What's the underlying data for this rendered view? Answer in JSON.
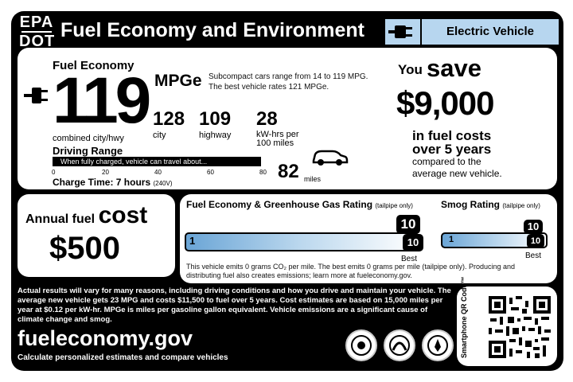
{
  "header": {
    "agency_top": "EPA",
    "agency_bottom": "DOT",
    "title": "Fuel Economy and Environment",
    "vehicle_type": "Electric Vehicle"
  },
  "fuel_economy": {
    "title": "Fuel Economy",
    "mpge": "119",
    "unit": "MPGe",
    "compare_line1": "Subcompact cars range from 14 to 119 MPG.",
    "compare_line2": "The best vehicle rates 121 MPGe.",
    "combined_label": "combined city/hwy",
    "city_value": "128",
    "city_label": "city",
    "highway_value": "109",
    "highway_label": "highway",
    "kwh_value": "28",
    "kwh_label_line1": "kW-hrs per",
    "kwh_label_line2": "100 miles"
  },
  "driving_range": {
    "title": "Driving Range",
    "bar_text": "When fully charged, vehicle can travel about...",
    "ticks": [
      "0",
      "20",
      "40",
      "60",
      "80"
    ],
    "value": "82",
    "unit": "miles",
    "charge_label": "Charge Time: 7 hours",
    "charge_note": "(240V)"
  },
  "savings": {
    "you": "You",
    "save": "save",
    "amount": "$9,000",
    "line1": "in fuel costs",
    "line2": "over 5 years",
    "line3": "compared to the",
    "line4": "average new vehicle."
  },
  "annual": {
    "title_a": "Annual fuel",
    "title_c": "cost",
    "amount": "$500"
  },
  "ghg": {
    "title": "Fuel Economy & Greenhouse Gas Rating",
    "title_note": "(tailpipe only)",
    "scale_min": "1",
    "scale_max": "10",
    "rating": "10",
    "best_label": "Best",
    "note": "This vehicle emits 0 grams CO₂ per mile. The best emits 0 grams per mile (tailpipe only). Producing and distributing fuel also creates emissions; learn more at fueleconomy.gov."
  },
  "smog": {
    "title": "Smog Rating",
    "title_note": "(tailpipe only)",
    "scale_min": "1",
    "scale_max": "10",
    "rating": "10",
    "best_label": "Best"
  },
  "footer": {
    "disclaimer": "Actual results will vary for many reasons, including driving conditions and how you drive and maintain your vehicle. The average new vehicle gets 23 MPG and costs $11,500 to fuel over 5 years. Cost estimates are based on 15,000 miles per year at $0.12 per kW-hr. MPGe is miles per gasoline gallon equivalent. Vehicle emissions are a significant cause of climate change and smog.",
    "site": "fueleconomy.gov",
    "site_sub": "Calculate personalized estimates and compare vehicles",
    "qr_label": "Smartphone QR Code™"
  },
  "icons": [
    "plug-icon",
    "car-icon",
    "epa-seal-icon",
    "dot-seal-icon",
    "doe-seal-icon",
    "qr-code-icon"
  ],
  "colors": {
    "background": "#000000",
    "panel": "#ffffff",
    "ev_blue": "#b7d6ef",
    "scale_blue": "#6aa5d6"
  }
}
